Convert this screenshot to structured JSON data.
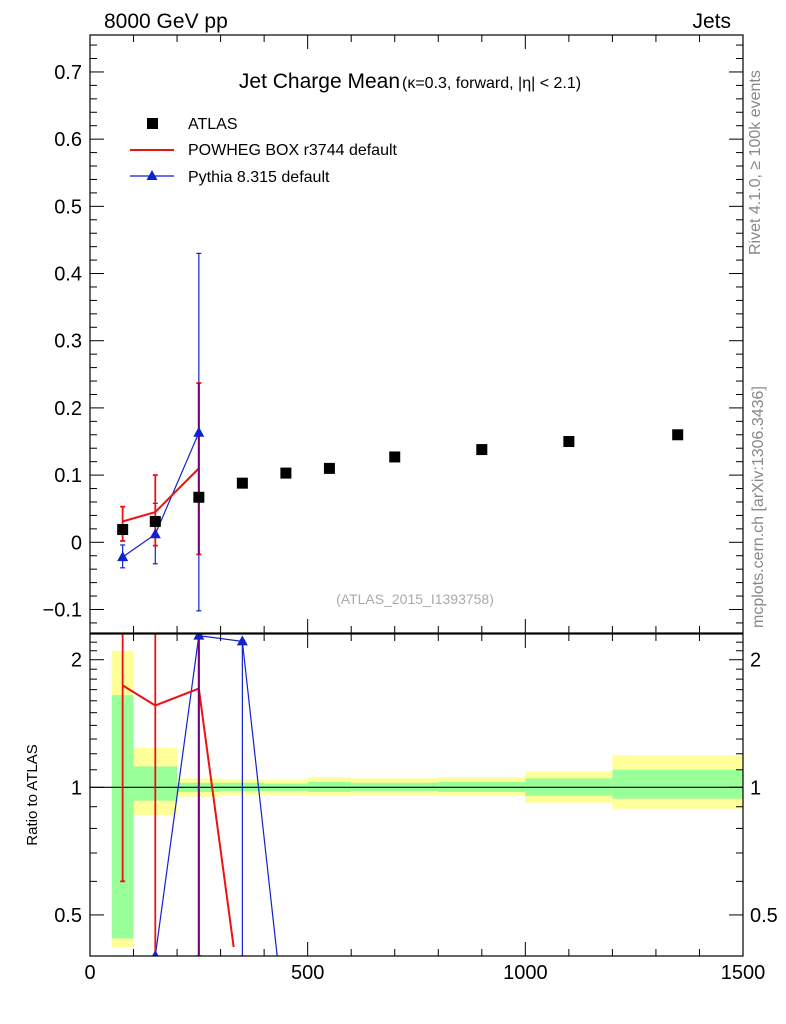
{
  "header": {
    "left": "8000 GeV pp",
    "right": "Jets"
  },
  "side_labels": {
    "rivet": "Rivet 4.1.0, ≥ 100k events",
    "mcplots": "mcplots.cern.ch [arXiv:1306.3436]"
  },
  "colors": {
    "atlas": "#000000",
    "powheg": "#ee1111",
    "pythia": "#1122cc",
    "band_yellow": "#ffff99",
    "band_green": "#99ff99",
    "overlap": "#770077"
  },
  "chart_data": [
    {
      "type": "scatter",
      "panel": "main",
      "title": "Jet Charge Mean",
      "subtitle": "(κ=0.3, forward, |η| < 2.1)",
      "analysis_tag": "(ATLAS_2015_I1393758)",
      "xlabel": "",
      "ylabel": "",
      "xlim": [
        0,
        1500
      ],
      "ylim": [
        -0.135,
        0.755
      ],
      "yticks": [
        -0.1,
        0,
        0.1,
        0.2,
        0.3,
        0.4,
        0.5,
        0.6,
        0.7
      ],
      "ytick_labels": [
        "−0.1",
        "0",
        "0.1",
        "0.2",
        "0.3",
        "0.4",
        "0.5",
        "0.6",
        "0.7"
      ],
      "legend": [
        "ATLAS",
        "POWHEG BOX r3744 default",
        "Pythia 8.315 default"
      ],
      "legend_position": "top-left",
      "series": [
        {
          "name": "ATLAS",
          "marker": "square",
          "x": [
            75,
            150,
            250,
            350,
            450,
            550,
            700,
            900,
            1100,
            1350
          ],
          "y": [
            0.019,
            0.031,
            0.067,
            0.088,
            0.103,
            0.11,
            0.127,
            0.138,
            0.15,
            0.16
          ]
        },
        {
          "name": "POWHEG BOX r3744 default",
          "marker": "line",
          "x": [
            75,
            150,
            250
          ],
          "y": [
            0.031,
            0.045,
            0.11
          ],
          "err_lo": [
            0.002,
            -0.005,
            -0.018
          ],
          "err_hi": [
            0.053,
            0.1,
            0.237
          ]
        },
        {
          "name": "Pythia 8.315 default",
          "marker": "triangle",
          "x": [
            75,
            150,
            250
          ],
          "y": [
            -0.022,
            0.012,
            0.163
          ],
          "err_lo": [
            -0.038,
            -0.032,
            -0.102
          ],
          "err_hi": [
            -0.004,
            0.058,
            0.43
          ]
        }
      ]
    },
    {
      "type": "line",
      "panel": "ratio",
      "title": "",
      "xlabel": "",
      "ylabel": "Ratio to ATLAS",
      "xlim": [
        0,
        1500
      ],
      "ylim": [
        0.4,
        2.3
      ],
      "yscale": "log",
      "yticks": [
        0.5,
        1,
        2
      ],
      "ytick_labels": [
        "0.5",
        "1",
        "2"
      ],
      "xticks": [
        0,
        500,
        1000,
        1500
      ],
      "xtick_labels": [
        "0",
        "500",
        "1000",
        "1500"
      ],
      "reference_line": 1,
      "uncertainty_bands": [
        {
          "x_lo": 50,
          "x_hi": 100,
          "y_lo": 0.42,
          "y_hi": 2.1,
          "g_lo": 0.44,
          "g_hi": 1.65
        },
        {
          "x_lo": 100,
          "x_hi": 200,
          "y_lo": 0.86,
          "y_hi": 1.24,
          "g_lo": 0.93,
          "g_hi": 1.12
        },
        {
          "x_lo": 200,
          "x_hi": 300,
          "y_lo": 0.95,
          "y_hi": 1.05,
          "g_lo": 0.975,
          "g_hi": 1.025
        },
        {
          "x_lo": 300,
          "x_hi": 400,
          "y_lo": 0.96,
          "y_hi": 1.045,
          "g_lo": 0.98,
          "g_hi": 1.025
        },
        {
          "x_lo": 400,
          "x_hi": 500,
          "y_lo": 0.96,
          "y_hi": 1.04,
          "g_lo": 0.98,
          "g_hi": 1.02
        },
        {
          "x_lo": 500,
          "x_hi": 600,
          "y_lo": 0.955,
          "y_hi": 1.055,
          "g_lo": 0.975,
          "g_hi": 1.03
        },
        {
          "x_lo": 600,
          "x_hi": 800,
          "y_lo": 0.96,
          "y_hi": 1.05,
          "g_lo": 0.98,
          "g_hi": 1.025
        },
        {
          "x_lo": 800,
          "x_hi": 1000,
          "y_lo": 0.955,
          "y_hi": 1.055,
          "g_lo": 0.975,
          "g_hi": 1.03
        },
        {
          "x_lo": 1000,
          "x_hi": 1200,
          "y_lo": 0.92,
          "y_hi": 1.09,
          "g_lo": 0.955,
          "g_hi": 1.05
        },
        {
          "x_lo": 1200,
          "x_hi": 1500,
          "y_lo": 0.89,
          "y_hi": 1.19,
          "g_lo": 0.94,
          "g_hi": 1.1
        }
      ],
      "series": [
        {
          "name": "POWHEG BOX r3744 default",
          "x": [
            75,
            150,
            250,
            330
          ],
          "y": [
            1.74,
            1.56,
            1.71,
            0.42
          ],
          "err_lo": [
            0.6,
            0.4,
            0.4
          ],
          "err_hi": [
            2.3,
            2.3,
            2.3
          ]
        },
        {
          "name": "Pythia 8.315 default",
          "x": [
            150,
            250,
            350,
            430
          ],
          "y": [
            0.4,
            2.28,
            2.21,
            0.4
          ],
          "err_lo": [
            0.4,
            0.4,
            0.4
          ],
          "err_hi": [
            1.93,
            2.3,
            2.21
          ]
        }
      ]
    }
  ]
}
